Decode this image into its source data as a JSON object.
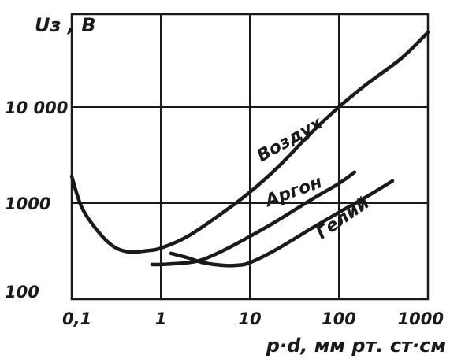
{
  "chart_data": {
    "type": "line",
    "title": "",
    "ylabel": "Uз , В",
    "xlabel": "p·d,  мм рт. ст·см",
    "x_scale": "log",
    "y_scale": "log",
    "xlim": [
      0.1,
      1000
    ],
    "ylim": [
      100,
      50000
    ],
    "grid": true,
    "x_ticks": [
      {
        "value": 0.1,
        "label": "0,1"
      },
      {
        "value": 1,
        "label": "1"
      },
      {
        "value": 10,
        "label": "10"
      },
      {
        "value": 100,
        "label": "100"
      },
      {
        "value": 1000,
        "label": "1000"
      }
    ],
    "y_ticks": [
      {
        "value": 100,
        "label": "100"
      },
      {
        "value": 1000,
        "label": "1000"
      },
      {
        "value": 10000,
        "label": "10 000"
      }
    ],
    "series": [
      {
        "name": "Воздух",
        "points": [
          [
            0.1,
            1900
          ],
          [
            0.13,
            900
          ],
          [
            0.2,
            500
          ],
          [
            0.3,
            350
          ],
          [
            0.45,
            310
          ],
          [
            0.7,
            320
          ],
          [
            1,
            340
          ],
          [
            2,
            450
          ],
          [
            5,
            800
          ],
          [
            10,
            1300
          ],
          [
            20,
            2300
          ],
          [
            50,
            5500
          ],
          [
            100,
            10000
          ],
          [
            200,
            17000
          ],
          [
            500,
            32000
          ],
          [
            1000,
            60000
          ]
        ]
      },
      {
        "name": "Аргон",
        "points": [
          [
            0.8,
            230
          ],
          [
            1,
            230
          ],
          [
            2,
            240
          ],
          [
            3,
            260
          ],
          [
            5,
            320
          ],
          [
            10,
            450
          ],
          [
            20,
            650
          ],
          [
            50,
            1100
          ],
          [
            100,
            1600
          ],
          [
            150,
            2100
          ]
        ]
      },
      {
        "name": "Гелий",
        "points": [
          [
            1.3,
            300
          ],
          [
            2,
            270
          ],
          [
            3,
            240
          ],
          [
            5,
            225
          ],
          [
            7,
            225
          ],
          [
            10,
            240
          ],
          [
            20,
            330
          ],
          [
            50,
            550
          ],
          [
            100,
            800
          ],
          [
            200,
            1150
          ],
          [
            400,
            1700
          ]
        ]
      }
    ]
  }
}
